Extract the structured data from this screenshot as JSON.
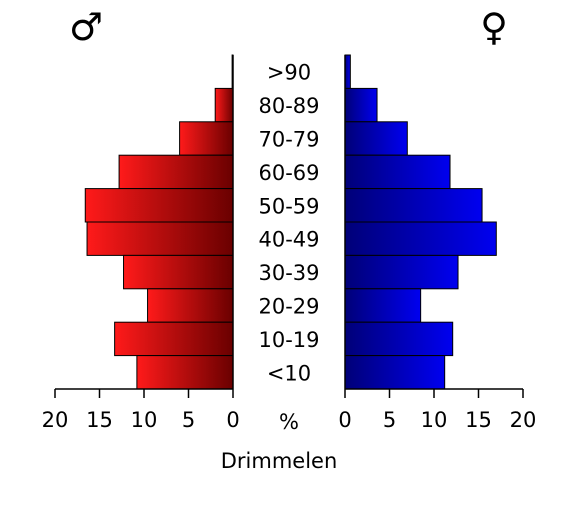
{
  "chart_data": {
    "type": "bar",
    "orientation": "horizontal",
    "layout": "population-pyramid",
    "categories": [
      ">90",
      "80-89",
      "70-79",
      "60-69",
      "50-59",
      "40-49",
      "30-39",
      "20-29",
      "10-19",
      "<10"
    ],
    "series": [
      {
        "name": "male",
        "symbol": "♂",
        "color": "#ee0000",
        "values": [
          0.1,
          2.0,
          6.0,
          12.8,
          16.6,
          16.4,
          12.3,
          9.6,
          13.3,
          10.8
        ]
      },
      {
        "name": "female",
        "symbol": "♀",
        "color": "#0000dd",
        "values": [
          0.6,
          3.6,
          7.0,
          11.8,
          15.4,
          17.0,
          12.7,
          8.5,
          12.1,
          11.2
        ]
      }
    ],
    "xlim": [
      0,
      20
    ],
    "xticks": [
      0,
      5,
      10,
      15,
      20
    ],
    "xlabel": "Drimmelen",
    "unit_label": "%",
    "grid": false,
    "legend": "symbols above each half"
  }
}
